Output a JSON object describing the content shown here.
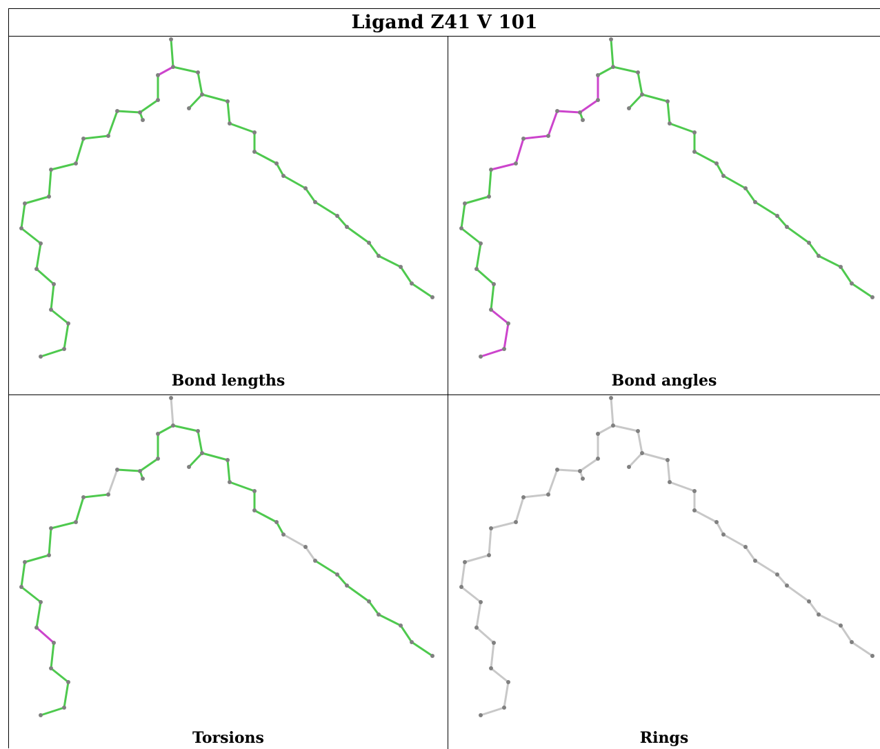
{
  "title": "Ligand Z41 V 101",
  "panels": [
    {
      "id": "bond-lengths",
      "label": "Bond lengths",
      "highlight_bonds": [
        [
          1,
          2
        ]
      ],
      "default_bond_color": "#4ec94e"
    },
    {
      "id": "bond-angles",
      "label": "Bond angles",
      "highlight_bonds": [
        [
          2,
          3
        ],
        [
          3,
          4
        ],
        [
          4,
          5
        ],
        [
          5,
          6
        ],
        [
          6,
          7
        ],
        [
          7,
          8
        ],
        [
          8,
          9
        ],
        [
          16,
          17
        ],
        [
          17,
          18
        ],
        [
          18,
          19
        ]
      ],
      "default_bond_color": "#4ec94e"
    },
    {
      "id": "torsions",
      "label": "Torsions",
      "highlight_bonds": [
        [
          14,
          15
        ]
      ],
      "default_bond_color": "#4ec94e",
      "gray_bonds": [
        [
          0,
          1
        ],
        [
          5,
          6
        ],
        [
          29,
          30
        ],
        [
          30,
          31
        ],
        [
          43,
          44
        ],
        [
          44,
          45
        ]
      ]
    },
    {
      "id": "rings",
      "label": "Rings",
      "highlight_bonds": [],
      "default_bond_color": "#c8c8c8"
    }
  ],
  "colors": {
    "ok": "#4ec94e",
    "outlier": "#cc44cc",
    "neutral": "#c8c8c8",
    "atom": "#808080"
  }
}
